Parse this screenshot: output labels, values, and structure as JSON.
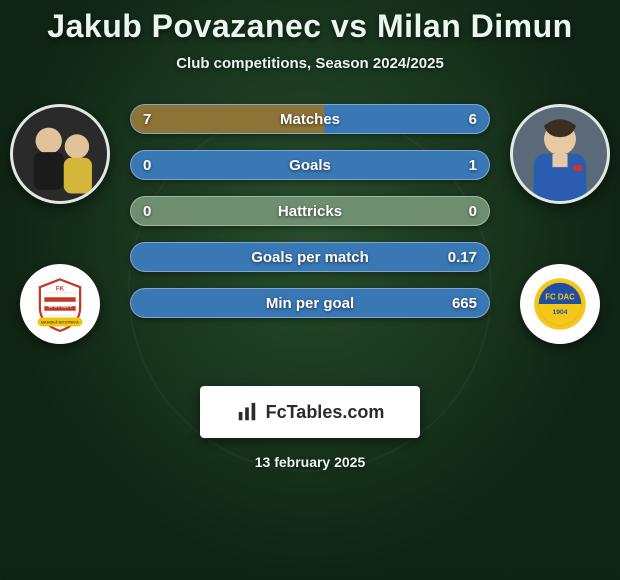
{
  "title": "Jakub Povazanec vs Milan Dimun",
  "subtitle": "Club competitions, Season 2024/2025",
  "date": "13 february 2025",
  "brand": {
    "name": "FcTables.com"
  },
  "colors": {
    "left_fill": "#8e7337",
    "right_fill": "#3a78b5",
    "neutral_fill": "#6e8f6f",
    "row_border": "rgba(255,255,255,0.35)"
  },
  "players": {
    "left": {
      "name": "Jakub Povazanec",
      "club": "FK Dukla Banská Bystrica"
    },
    "right": {
      "name": "Milan Dimun",
      "club": "FC DAC 1904"
    }
  },
  "club_badges": {
    "left": {
      "shield_fill": "#fff",
      "shield_stroke": "#c0392b",
      "stripes": [
        "#c0392b",
        "#ffffff"
      ],
      "text_top": "FK",
      "text_mid": "DUKLA",
      "text_bot": "BANSKÁ BYSTRICA",
      "ribbon_color": "#f1c40f"
    },
    "right": {
      "outer_ring": "#f5c518",
      "inner_top": "#1e4fa3",
      "inner_bot": "#f5c518",
      "text": "FC DAC",
      "year": "1904"
    }
  },
  "rows": [
    {
      "label": "Matches",
      "left_val": "7",
      "right_val": "6",
      "left_num": 7,
      "right_num": 6,
      "left_pct": 54,
      "right_pct": 46,
      "mode": "split"
    },
    {
      "label": "Goals",
      "left_val": "0",
      "right_val": "1",
      "left_num": 0,
      "right_num": 1,
      "left_pct": 0,
      "right_pct": 100,
      "mode": "right"
    },
    {
      "label": "Hattricks",
      "left_val": "0",
      "right_val": "0",
      "left_num": 0,
      "right_num": 0,
      "left_pct": 0,
      "right_pct": 0,
      "mode": "neutral"
    },
    {
      "label": "Goals per match",
      "left_val": "",
      "right_val": "0.17",
      "left_num": 0,
      "right_num": 0.17,
      "left_pct": 0,
      "right_pct": 100,
      "mode": "right"
    },
    {
      "label": "Min per goal",
      "left_val": "",
      "right_val": "665",
      "left_num": null,
      "right_num": 665,
      "left_pct": 0,
      "right_pct": 100,
      "mode": "right"
    }
  ]
}
